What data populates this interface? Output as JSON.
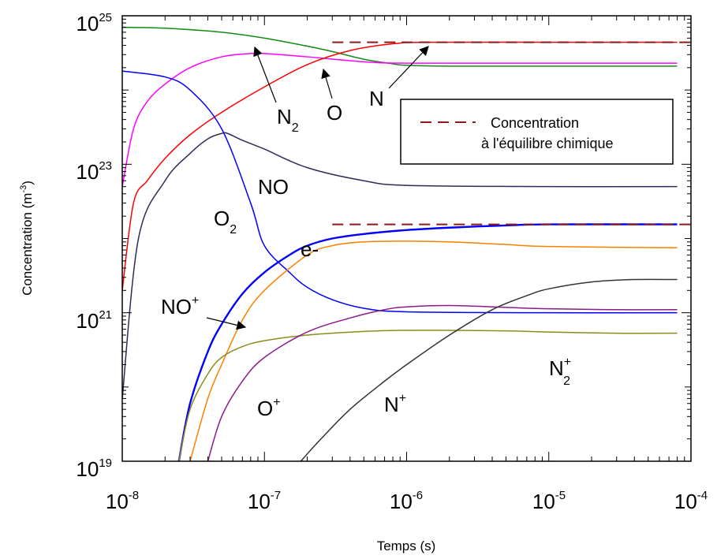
{
  "chart_data": {
    "type": "line",
    "xlabel": "Temps (s)",
    "ylabel": {
      "base": "Concentration (m",
      "sup": "-3",
      "close": ")"
    },
    "xscale": "log",
    "yscale": "log",
    "xlim": [
      1e-08,
      0.0001
    ],
    "ylim": [
      1e+19,
      1e+25
    ],
    "xticks": [
      {
        "value": 1e-08,
        "base": "10",
        "exp": "-8"
      },
      {
        "value": 1e-07,
        "base": "10",
        "exp": "-7"
      },
      {
        "value": 1e-06,
        "base": "10",
        "exp": "-6"
      },
      {
        "value": 1e-05,
        "base": "10",
        "exp": "-5"
      },
      {
        "value": 0.0001,
        "base": "10",
        "exp": "-4"
      }
    ],
    "yticks": [
      {
        "value": 1e+19,
        "base": "10",
        "exp": "19"
      },
      {
        "value": 1e+21,
        "base": "10",
        "exp": "21"
      },
      {
        "value": 1e+23,
        "base": "10",
        "exp": "23"
      },
      {
        "value": 1e+25,
        "base": "10",
        "exp": "25"
      }
    ],
    "grid": false,
    "legend": {
      "position": "top-right",
      "label_line1": "Concentration",
      "label_line2": "à l'équilibre chimique",
      "color": "#8b1a1a",
      "style": "dashed"
    },
    "series": [
      {
        "name": "N2",
        "color": "#138a13",
        "x": [
          1e-08,
          2e-08,
          5e-08,
          1e-07,
          2e-07,
          3e-07,
          5e-07,
          8e-07,
          1e-06,
          2e-06,
          1e-05,
          8e-05
        ],
        "y": [
          7e+24,
          6.8e+24,
          6e+24,
          5e+24,
          3.9e+24,
          3.3e+24,
          2.6e+24,
          2.25e+24,
          2.15e+24,
          2.1e+24,
          2.1e+24,
          2.1e+24
        ]
      },
      {
        "name": "O",
        "color": "#ff00ff",
        "x": [
          1e-08,
          1.2e-08,
          1.5e-08,
          2e-08,
          3e-08,
          5e-08,
          8e-08,
          1e-07,
          2e-07,
          5e-07,
          1e-06,
          1e-05,
          8e-05
        ],
        "y": [
          5e+22,
          3e+23,
          7e+23,
          1.2e+24,
          2e+24,
          2.8e+24,
          3.1e+24,
          3.1e+24,
          2.8e+24,
          2.4e+24,
          2.3e+24,
          2.3e+24,
          2.3e+24
        ]
      },
      {
        "name": "N",
        "color": "#ff0000",
        "x": [
          1e-08,
          1.2e-08,
          1.5e-08,
          2e-08,
          3e-08,
          5e-08,
          1e-07,
          2e-07,
          4e-07,
          8e-07,
          1.5e-06,
          1e-05,
          8e-05
        ],
        "y": [
          2e+21,
          3e+22,
          6e+22,
          1.2e+23,
          2.5e+23,
          5e+23,
          1.1e+24,
          2.2e+24,
          3.4e+24,
          4.2e+24,
          4.4e+24,
          4.4e+24,
          4.4e+24
        ]
      },
      {
        "name": "O2",
        "color": "#0000ff",
        "x": [
          1e-08,
          2e-08,
          3e-08,
          5e-08,
          8e-08,
          1e-07,
          1.5e-07,
          2e-07,
          3e-07,
          5e-07,
          1e-06,
          1e-05,
          8e-05
        ],
        "y": [
          1.8e+24,
          1.5e+24,
          1e+24,
          3e+23,
          3e+22,
          8e+21,
          3.5e+21,
          2.2e+21,
          1.5e+21,
          1.15e+21,
          1.03e+21,
          1e+21,
          1e+21
        ]
      },
      {
        "name": "NO",
        "color": "#2c2c5a",
        "x": [
          1e-08,
          1.3e-08,
          2e-08,
          3e-08,
          4e-08,
          5e-08,
          5.5e-08,
          7e-08,
          1e-07,
          2e-07,
          5e-07,
          1e-06,
          1e-05,
          8e-05
        ],
        "y": [
          7e+19,
          1e+22,
          6e+22,
          1.4e+23,
          2.2e+23,
          2.6e+23,
          2.6e+23,
          2.1e+23,
          1.6e+23,
          9e+22,
          6e+22,
          5.2e+22,
          5e+22,
          5e+22
        ]
      },
      {
        "name": "e-",
        "color": "#0000ff",
        "x": [
          2.5e-08,
          3e-08,
          4e-08,
          5e-08,
          7e-08,
          1e-07,
          1.5e-07,
          2e-07,
          3e-07,
          5e-07,
          1e-06,
          2e-06,
          5e-06,
          1e-05,
          8e-05
        ],
        "y": [
          1e+19,
          6e+19,
          3e+20,
          7e+20,
          1.8e+21,
          3.5e+21,
          6e+21,
          8e+21,
          1e+22,
          1.15e+22,
          1.3e+22,
          1.4e+22,
          1.5e+22,
          1.55e+22,
          1.55e+22
        ]
      },
      {
        "name": "NO+",
        "color": "#ff7f00",
        "x": [
          3e-08,
          4e-08,
          5e-08,
          7e-08,
          1e-07,
          2e-07,
          3e-07,
          5e-07,
          1e-06,
          2e-06,
          5e-06,
          1e-05,
          8e-05
        ],
        "y": [
          1e+19,
          7e+19,
          2e+20,
          8e+20,
          2e+21,
          6e+21,
          8e+21,
          9e+21,
          9.2e+21,
          9e+21,
          8.3e+21,
          7.8e+21,
          7.5e+21
        ]
      },
      {
        "name": "N2+",
        "color": "#8b8b1a",
        "x": [
          2.5e-08,
          3e-08,
          4e-08,
          5e-08,
          7e-08,
          1e-07,
          2e-07,
          5e-07,
          1e-06,
          2e-06,
          5e-06,
          1e-05,
          3e-05,
          8e-05
        ],
        "y": [
          1e+19,
          5e+19,
          1.5e+20,
          2.5e+20,
          3.5e+20,
          4.2e+20,
          5e+20,
          5.6e+20,
          5.8e+20,
          5.8e+20,
          5.7e+20,
          5.5e+20,
          5.3e+20,
          5.3e+20
        ]
      },
      {
        "name": "O+",
        "color": "#8b1a8b",
        "x": [
          4e-08,
          5e-08,
          7e-08,
          1e-07,
          2e-07,
          4e-07,
          7e-07,
          1e-06,
          2e-06,
          5e-06,
          1e-05,
          3e-05,
          8e-05
        ],
        "y": [
          1e+19,
          4e+19,
          1.2e+20,
          2.5e+20,
          5.5e+20,
          8.5e+20,
          1.1e+21,
          1.2e+21,
          1.25e+21,
          1.18e+21,
          1.13e+21,
          1.1e+21,
          1.1e+21
        ]
      },
      {
        "name": "N+",
        "color": "#333333",
        "x": [
          1.8e-07,
          2.5e-07,
          4e-07,
          7e-07,
          1e-06,
          2e-06,
          4e-06,
          7e-06,
          1e-05,
          2e-05,
          4e-05,
          8e-05
        ],
        "y": [
          1e+19,
          2e+19,
          5e+19,
          1.2e+20,
          2e+20,
          5e+20,
          1.1e+21,
          1.7e+21,
          2.1e+21,
          2.6e+21,
          2.8e+21,
          2.8e+21
        ]
      }
    ],
    "equilibrium_lines": [
      {
        "value": 4.4e+24,
        "xmin": 3e-07,
        "xmax": 0.0001,
        "color": "#8b1a1a"
      },
      {
        "value": 1.55e+22,
        "xmin": 3e-07,
        "xmax": 0.0001,
        "color": "#8b1a1a"
      }
    ],
    "annotations": [
      {
        "base": "N",
        "sub": "2",
        "sup": ""
      },
      {
        "base": "O",
        "sub": "",
        "sup": ""
      },
      {
        "base": "N",
        "sub": "",
        "sup": ""
      },
      {
        "base": "NO",
        "sub": "",
        "sup": ""
      },
      {
        "base": "O",
        "sub": "2",
        "sup": ""
      },
      {
        "base": "e-",
        "sub": "",
        "sup": ""
      },
      {
        "base": "NO",
        "sub": "",
        "sup": "+"
      },
      {
        "base": "O",
        "sub": "",
        "sup": "+"
      },
      {
        "base": "N",
        "sub": "",
        "sup": "+"
      },
      {
        "base": "N",
        "sub": "2",
        "sup": "+"
      }
    ]
  }
}
